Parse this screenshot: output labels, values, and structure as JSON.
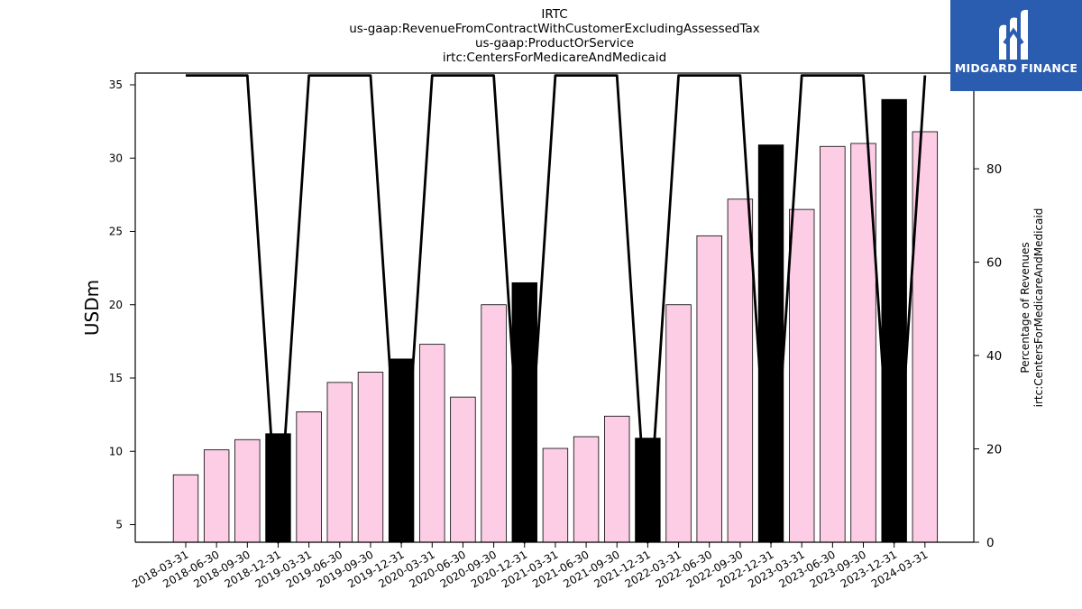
{
  "chart_data": {
    "type": "bar",
    "title_lines": [
      "IRTC",
      "us-gaap:RevenueFromContractWithCustomerExcludingAssessedTax",
      "us-gaap:ProductOrService",
      "irtc:CentersForMedicareAndMedicaid"
    ],
    "ylabel": "USDm",
    "ylabel_right_lines": [
      "Percentage of Revenues",
      "irtc:CentersForMedicareAndMedicaid"
    ],
    "ylim": [
      3.8,
      35.8
    ],
    "ylim_right": [
      0,
      100.5
    ],
    "yticks": [
      5,
      10,
      15,
      20,
      25,
      30,
      35
    ],
    "yticks_right": [
      0,
      20,
      40,
      60,
      80,
      100
    ],
    "categories": [
      "2018-03-31",
      "2018-06-30",
      "2018-09-30",
      "2018-12-31",
      "2019-03-31",
      "2019-06-30",
      "2019-09-30",
      "2019-12-31",
      "2020-03-31",
      "2020-06-30",
      "2020-09-30",
      "2020-12-31",
      "2021-03-31",
      "2021-06-30",
      "2021-09-30",
      "2021-12-31",
      "2022-03-31",
      "2022-06-30",
      "2022-09-30",
      "2022-12-31",
      "2023-03-31",
      "2023-06-30",
      "2023-09-30",
      "2023-12-31",
      "2024-03-31"
    ],
    "series": [
      {
        "type": "bar",
        "values": [
          8.4,
          10.1,
          10.8,
          11.2,
          12.7,
          14.7,
          15.4,
          16.3,
          17.3,
          13.7,
          20.0,
          21.5,
          10.2,
          11.0,
          12.4,
          10.9,
          20.0,
          24.7,
          27.2,
          30.9,
          26.5,
          30.8,
          31.0,
          34.0,
          31.8
        ],
        "highlight": [
          false,
          false,
          false,
          true,
          false,
          false,
          false,
          true,
          false,
          false,
          false,
          true,
          false,
          false,
          false,
          true,
          false,
          false,
          false,
          true,
          false,
          false,
          false,
          true,
          false
        ],
        "color": "#fccde5",
        "highlight_color": "#000000"
      },
      {
        "type": "line",
        "axis": "right",
        "values": [
          100,
          100,
          100,
          0,
          100,
          100,
          100,
          0,
          100,
          100,
          100,
          0,
          100,
          100,
          100,
          0,
          100,
          100,
          100,
          0,
          100,
          100,
          100,
          0,
          100
        ],
        "color": "#000000"
      }
    ],
    "grid": false
  },
  "logo": {
    "text": "MIDGARD FINANCE",
    "bg_color": "#2a5db0"
  }
}
